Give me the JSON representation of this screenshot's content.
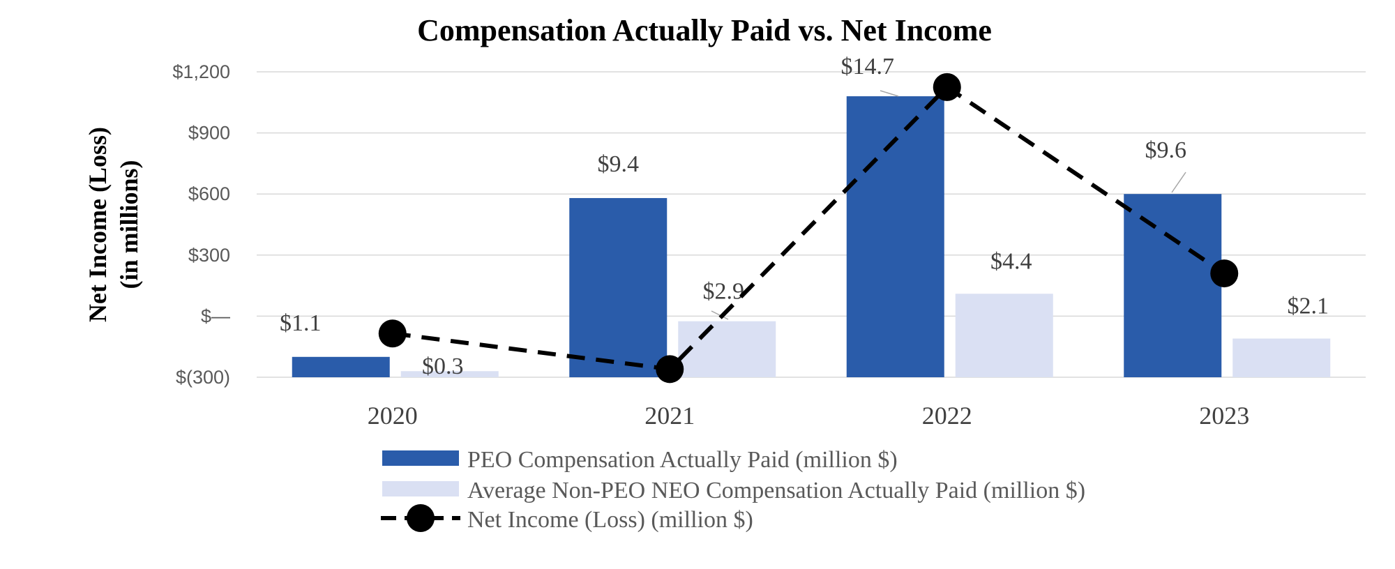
{
  "chart_data": {
    "type": "bar",
    "title": "Compensation Actually Paid vs. Net Income",
    "ylabel_line1": "Net Income (Loss)",
    "ylabel_line2": "(in millions)",
    "xlabel": "",
    "categories": [
      "2020",
      "2021",
      "2022",
      "2023"
    ],
    "ylim": [
      -300,
      1200
    ],
    "yticks": [
      -300,
      0,
      300,
      600,
      900,
      1200
    ],
    "ytick_labels": [
      "$(300)",
      "$—",
      "$300",
      "$600",
      "$900",
      "$1,200"
    ],
    "grid": true,
    "series": [
      {
        "name": "PEO Compensation Actually Paid (million $)",
        "kind": "bar",
        "color": "#2a5caa",
        "plot_values": [
          -200,
          580,
          1080,
          600
        ],
        "labels": [
          "$1.1",
          "$9.4",
          "$14.7",
          "$9.6"
        ]
      },
      {
        "name": "Average Non-PEO NEO Compensation Actually Paid (million $)",
        "kind": "bar",
        "color": "#dae0f3",
        "plot_values": [
          -270,
          -25,
          110,
          -110
        ],
        "labels": [
          "$0.3",
          "$2.9",
          "$4.4",
          "$2.1"
        ]
      },
      {
        "name": "Net Income (Loss) (million $)",
        "kind": "line",
        "color": "#000000",
        "values": [
          -85,
          -260,
          1125,
          210
        ]
      }
    ]
  }
}
